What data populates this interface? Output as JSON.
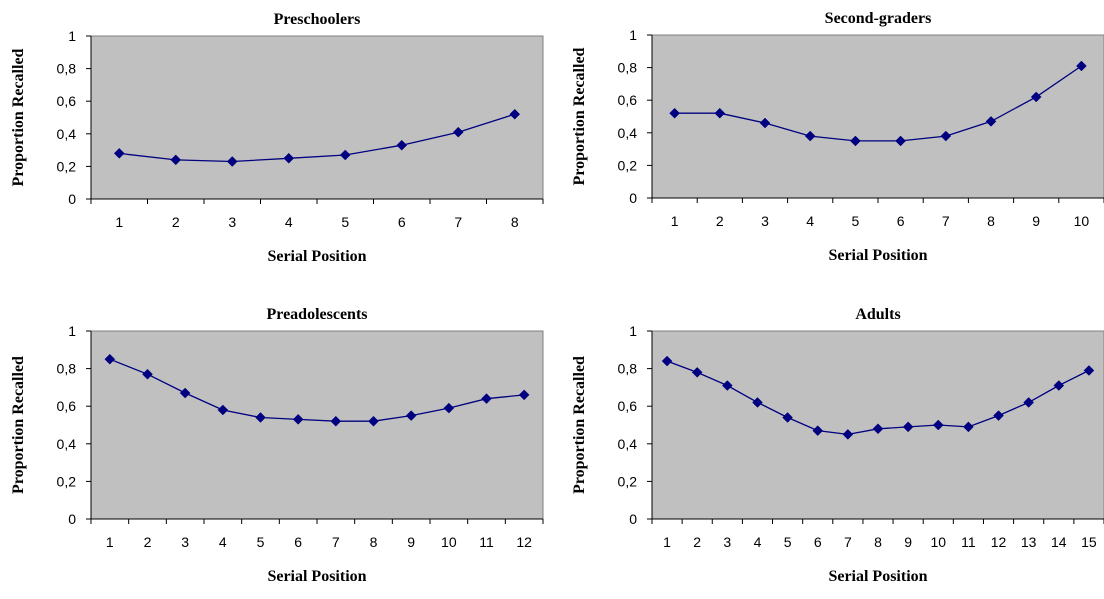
{
  "chart_data": [
    {
      "type": "line",
      "title": "Preschoolers",
      "xlabel": "Serial Position",
      "ylabel": "Proportion Recalled",
      "ylim": [
        0,
        1
      ],
      "yticks": [
        "0",
        "0,2",
        "0,4",
        "0,6",
        "0,8",
        "1"
      ],
      "categories": [
        "1",
        "2",
        "3",
        "4",
        "5",
        "6",
        "7",
        "8"
      ],
      "values": [
        0.28,
        0.24,
        0.23,
        0.25,
        0.27,
        0.33,
        0.41,
        0.52
      ],
      "grid": false,
      "colors": {
        "plot_bg": "#c0c0c0",
        "series": "#000080"
      }
    },
    {
      "type": "line",
      "title": "Second-graders",
      "xlabel": "Serial Position",
      "ylabel": "Proportion Recalled",
      "ylim": [
        0,
        1
      ],
      "yticks": [
        "0",
        "0,2",
        "0,4",
        "0,6",
        "0,8",
        "1"
      ],
      "categories": [
        "1",
        "2",
        "3",
        "4",
        "5",
        "6",
        "7",
        "8",
        "9",
        "10"
      ],
      "values": [
        0.52,
        0.52,
        0.46,
        0.38,
        0.35,
        0.35,
        0.38,
        0.47,
        0.62,
        0.81
      ],
      "grid": false,
      "colors": {
        "plot_bg": "#c0c0c0",
        "series": "#000080"
      }
    },
    {
      "type": "line",
      "title": "Preadolescents",
      "xlabel": "Serial Position",
      "ylabel": "Proportion Recalled",
      "ylim": [
        0,
        1
      ],
      "yticks": [
        "0",
        "0,2",
        "0,4",
        "0,6",
        "0,8",
        "1"
      ],
      "categories": [
        "1",
        "2",
        "3",
        "4",
        "5",
        "6",
        "7",
        "8",
        "9",
        "10",
        "11",
        "12"
      ],
      "values": [
        0.85,
        0.77,
        0.67,
        0.58,
        0.54,
        0.53,
        0.52,
        0.52,
        0.55,
        0.59,
        0.64,
        0.66
      ],
      "grid": false,
      "colors": {
        "plot_bg": "#c0c0c0",
        "series": "#000080"
      }
    },
    {
      "type": "line",
      "title": "Adults",
      "xlabel": "Serial Position",
      "ylabel": "Proportion Recalled",
      "ylim": [
        0,
        1
      ],
      "yticks": [
        "0",
        "0,2",
        "0,4",
        "0,6",
        "0,8",
        "1"
      ],
      "categories": [
        "1",
        "2",
        "3",
        "4",
        "5",
        "6",
        "7",
        "8",
        "9",
        "10",
        "11",
        "12",
        "13",
        "14",
        "15"
      ],
      "values": [
        0.84,
        0.78,
        0.71,
        0.62,
        0.54,
        0.47,
        0.45,
        0.48,
        0.49,
        0.5,
        0.49,
        0.55,
        0.62,
        0.71,
        0.79
      ],
      "grid": false,
      "colors": {
        "plot_bg": "#c0c0c0",
        "series": "#000080"
      }
    }
  ]
}
